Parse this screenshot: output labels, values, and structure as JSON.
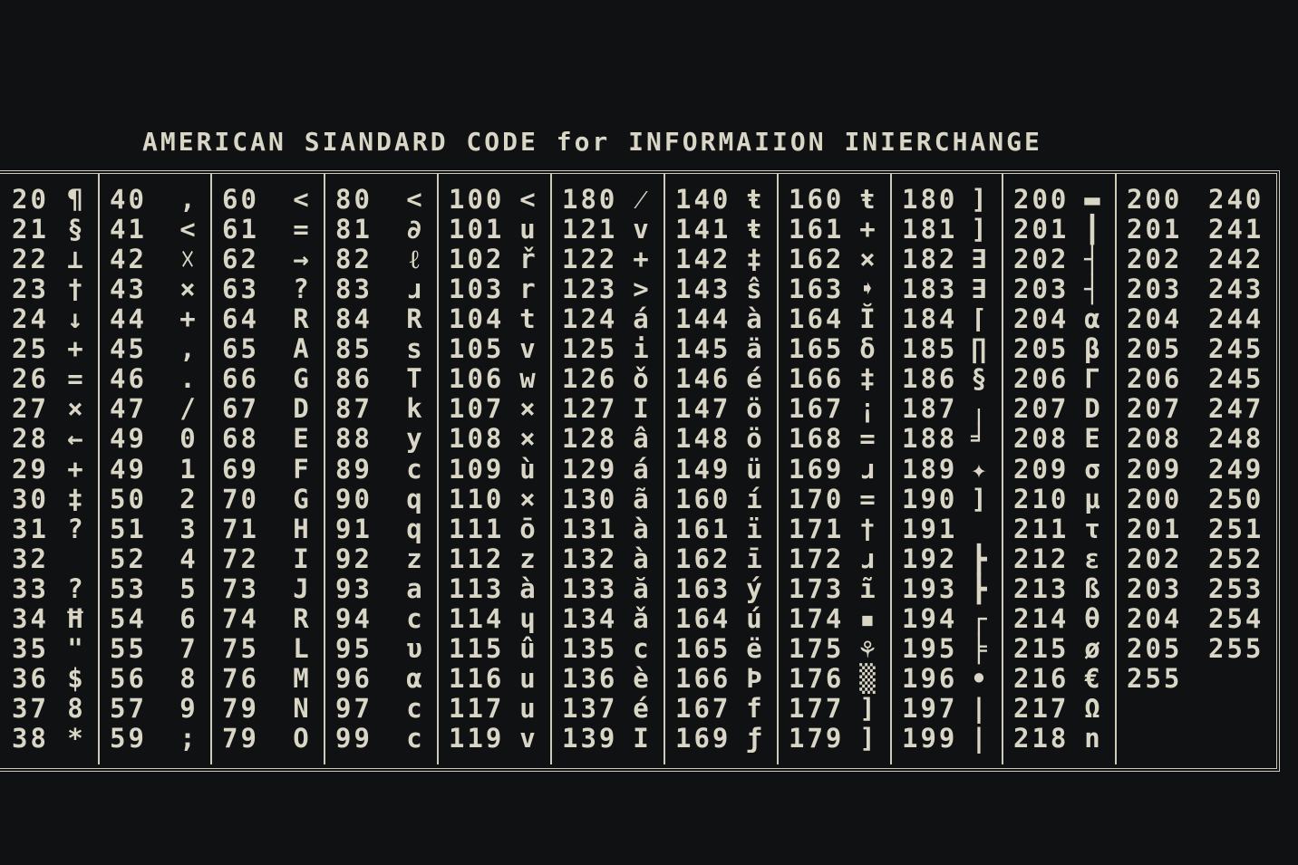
{
  "header": {
    "title": "AMERICAN SIANDARD CODE for INFORMAIION INIERCHANGE"
  },
  "table": {
    "columns": [
      {
        "rows": [
          [
            "20",
            "¶"
          ],
          [
            "21",
            "§"
          ],
          [
            "22",
            "⊥"
          ],
          [
            "23",
            "†"
          ],
          [
            "24",
            "↓"
          ],
          [
            "25",
            "+"
          ],
          [
            "26",
            "="
          ],
          [
            "27",
            "×"
          ],
          [
            "28",
            "←"
          ],
          [
            "29",
            "+"
          ],
          [
            "30",
            "‡"
          ],
          [
            "31",
            "?"
          ],
          [
            "32"
          ],
          [
            "33",
            "?"
          ],
          [
            "34",
            "Ħ"
          ],
          [
            "35",
            "\""
          ],
          [
            "36",
            "$"
          ],
          [
            "37",
            "8"
          ],
          [
            "38",
            "*"
          ]
        ]
      },
      {
        "rows": [
          [
            "40",
            ","
          ],
          [
            "41",
            "<"
          ],
          [
            "42",
            "☓"
          ],
          [
            "43",
            "×"
          ],
          [
            "44",
            "+"
          ],
          [
            "45",
            ","
          ],
          [
            "46",
            "."
          ],
          [
            "47",
            "/"
          ],
          [
            "49",
            "0"
          ],
          [
            "49",
            "1"
          ],
          [
            "50",
            "2"
          ],
          [
            "51",
            "3"
          ],
          [
            "52",
            "4"
          ],
          [
            "53",
            "5"
          ],
          [
            "54",
            "6"
          ],
          [
            "55",
            "7"
          ],
          [
            "56",
            "8"
          ],
          [
            "57",
            "9"
          ],
          [
            "59",
            ";"
          ]
        ]
      },
      {
        "rows": [
          [
            "60",
            "<"
          ],
          [
            "61",
            "="
          ],
          [
            "62",
            "→"
          ],
          [
            "63",
            "?"
          ],
          [
            "64",
            "R"
          ],
          [
            "65",
            "A"
          ],
          [
            "66",
            "G"
          ],
          [
            "67",
            "D"
          ],
          [
            "68",
            "E"
          ],
          [
            "69",
            "F"
          ],
          [
            "70",
            "G"
          ],
          [
            "71",
            "H"
          ],
          [
            "72",
            "I"
          ],
          [
            "73",
            "J"
          ],
          [
            "74",
            "R"
          ],
          [
            "75",
            "L"
          ],
          [
            "76",
            "M"
          ],
          [
            "79",
            "N"
          ],
          [
            "79",
            "O"
          ]
        ]
      },
      {
        "rows": [
          [
            "80",
            "<"
          ],
          [
            "81",
            "∂"
          ],
          [
            "82",
            "ℓ"
          ],
          [
            "83",
            "ɹ"
          ],
          [
            "84",
            "R"
          ],
          [
            "85",
            "s"
          ],
          [
            "86",
            "T"
          ],
          [
            "87",
            "k"
          ],
          [
            "88",
            "y"
          ],
          [
            "89",
            "c"
          ],
          [
            "90",
            "q"
          ],
          [
            "91",
            "q"
          ],
          [
            "92",
            "z"
          ],
          [
            "93",
            "a"
          ],
          [
            "94",
            "c"
          ],
          [
            "95",
            "υ"
          ],
          [
            "96",
            "α"
          ],
          [
            "97",
            "c"
          ],
          [
            "99",
            "c"
          ]
        ]
      },
      {
        "rows": [
          [
            "100",
            "<"
          ],
          [
            "101",
            "u"
          ],
          [
            "102",
            "ř"
          ],
          [
            "103",
            "r"
          ],
          [
            "104",
            "t"
          ],
          [
            "105",
            "v"
          ],
          [
            "106",
            "w"
          ],
          [
            "107",
            "×"
          ],
          [
            "108",
            "×"
          ],
          [
            "109",
            "ù"
          ],
          [
            "110",
            "×"
          ],
          [
            "111",
            "ō"
          ],
          [
            "112",
            "z"
          ],
          [
            "113",
            "à"
          ],
          [
            "114",
            "ɥ"
          ],
          [
            "115",
            "û"
          ],
          [
            "116",
            "u"
          ],
          [
            "117",
            "u"
          ],
          [
            "119",
            "v"
          ]
        ]
      },
      {
        "rows": [
          [
            "180",
            "⁄"
          ],
          [
            "121",
            "v"
          ],
          [
            "122",
            "+"
          ],
          [
            "123",
            ">"
          ],
          [
            "124",
            "á"
          ],
          [
            "125",
            "i"
          ],
          [
            "126",
            "ǒ"
          ],
          [
            "127",
            "I"
          ],
          [
            "128",
            "â"
          ],
          [
            "129",
            "á"
          ],
          [
            "130",
            "ã"
          ],
          [
            "131",
            "à"
          ],
          [
            "132",
            "à"
          ],
          [
            "133",
            "ă"
          ],
          [
            "134",
            "ǎ"
          ],
          [
            "135",
            "c"
          ],
          [
            "136",
            "è"
          ],
          [
            "137",
            "é"
          ],
          [
            "139",
            "I"
          ]
        ]
      },
      {
        "rows": [
          [
            "140",
            "ŧ"
          ],
          [
            "141",
            "ŧ"
          ],
          [
            "142",
            "‡"
          ],
          [
            "143",
            "ŝ"
          ],
          [
            "144",
            "à"
          ],
          [
            "145",
            "ä"
          ],
          [
            "146",
            "é"
          ],
          [
            "147",
            "ö"
          ],
          [
            "148",
            "ö"
          ],
          [
            "149",
            "ü"
          ],
          [
            "160",
            "í"
          ],
          [
            "161",
            "ï"
          ],
          [
            "162",
            "ī"
          ],
          [
            "163",
            "ý"
          ],
          [
            "164",
            "ú"
          ],
          [
            "165",
            "ë"
          ],
          [
            "166",
            "Þ"
          ],
          [
            "167",
            "f"
          ],
          [
            "169",
            "ƒ"
          ]
        ]
      },
      {
        "rows": [
          [
            "160",
            "ŧ"
          ],
          [
            "161",
            "+"
          ],
          [
            "162",
            "×"
          ],
          [
            "163",
            "➧"
          ],
          [
            "164",
            "Ĭ"
          ],
          [
            "165",
            "δ"
          ],
          [
            "166",
            "‡"
          ],
          [
            "167",
            "¡"
          ],
          [
            "168",
            "="
          ],
          [
            "169",
            "ɹ"
          ],
          [
            "170",
            "="
          ],
          [
            "171",
            "†"
          ],
          [
            "172",
            "ɹ"
          ],
          [
            "173",
            "ĩ"
          ],
          [
            "174",
            "▪"
          ],
          [
            "175",
            "⚘"
          ],
          [
            "176",
            "▒"
          ],
          [
            "177",
            "]"
          ],
          [
            "179",
            "]"
          ]
        ]
      },
      {
        "rows": [
          [
            "180",
            "]"
          ],
          [
            "181",
            "]"
          ],
          [
            "182",
            "∃"
          ],
          [
            "183",
            "∃"
          ],
          [
            "184",
            "⌈"
          ],
          [
            "185",
            "∏"
          ],
          [
            "186",
            "§"
          ],
          [
            "187",
            "╷"
          ],
          [
            "188",
            "╛"
          ],
          [
            "189",
            "✦"
          ],
          [
            "190",
            "]"
          ],
          [
            "191"
          ],
          [
            "192",
            "┣"
          ],
          [
            "193",
            "┣"
          ],
          [
            "194",
            "┌"
          ],
          [
            "195",
            "╞"
          ],
          [
            "196",
            "•"
          ],
          [
            "197",
            "|"
          ],
          [
            "199",
            "|"
          ]
        ]
      },
      {
        "rows": [
          [
            "200",
            "▬"
          ],
          [
            "201",
            "┃"
          ],
          [
            "202",
            "┤"
          ],
          [
            "203",
            "┤"
          ],
          [
            "204",
            "α"
          ],
          [
            "205",
            "β"
          ],
          [
            "206",
            "Γ"
          ],
          [
            "207",
            "D"
          ],
          [
            "208",
            "E"
          ],
          [
            "209",
            "σ"
          ],
          [
            "210",
            "μ"
          ],
          [
            "211",
            "τ"
          ],
          [
            "212",
            "ε"
          ],
          [
            "213",
            "ß"
          ],
          [
            "214",
            "θ"
          ],
          [
            "215",
            "ø"
          ],
          [
            "216",
            "€"
          ],
          [
            "217",
            "Ω"
          ],
          [
            "218",
            "n"
          ]
        ]
      },
      {
        "rows": [
          [
            "200",
            "240"
          ],
          [
            "201",
            "241"
          ],
          [
            "202",
            "242"
          ],
          [
            "203",
            "243"
          ],
          [
            "204",
            "244"
          ],
          [
            "205",
            "245"
          ],
          [
            "206",
            "245"
          ],
          [
            "207",
            "247"
          ],
          [
            "208",
            "248"
          ],
          [
            "209",
            "249"
          ],
          [
            "200",
            "250"
          ],
          [
            "201",
            "251"
          ],
          [
            "202",
            "252"
          ],
          [
            "203",
            "253"
          ],
          [
            "204",
            "254"
          ],
          [
            "205",
            "255"
          ],
          [
            "255"
          ]
        ]
      }
    ]
  }
}
